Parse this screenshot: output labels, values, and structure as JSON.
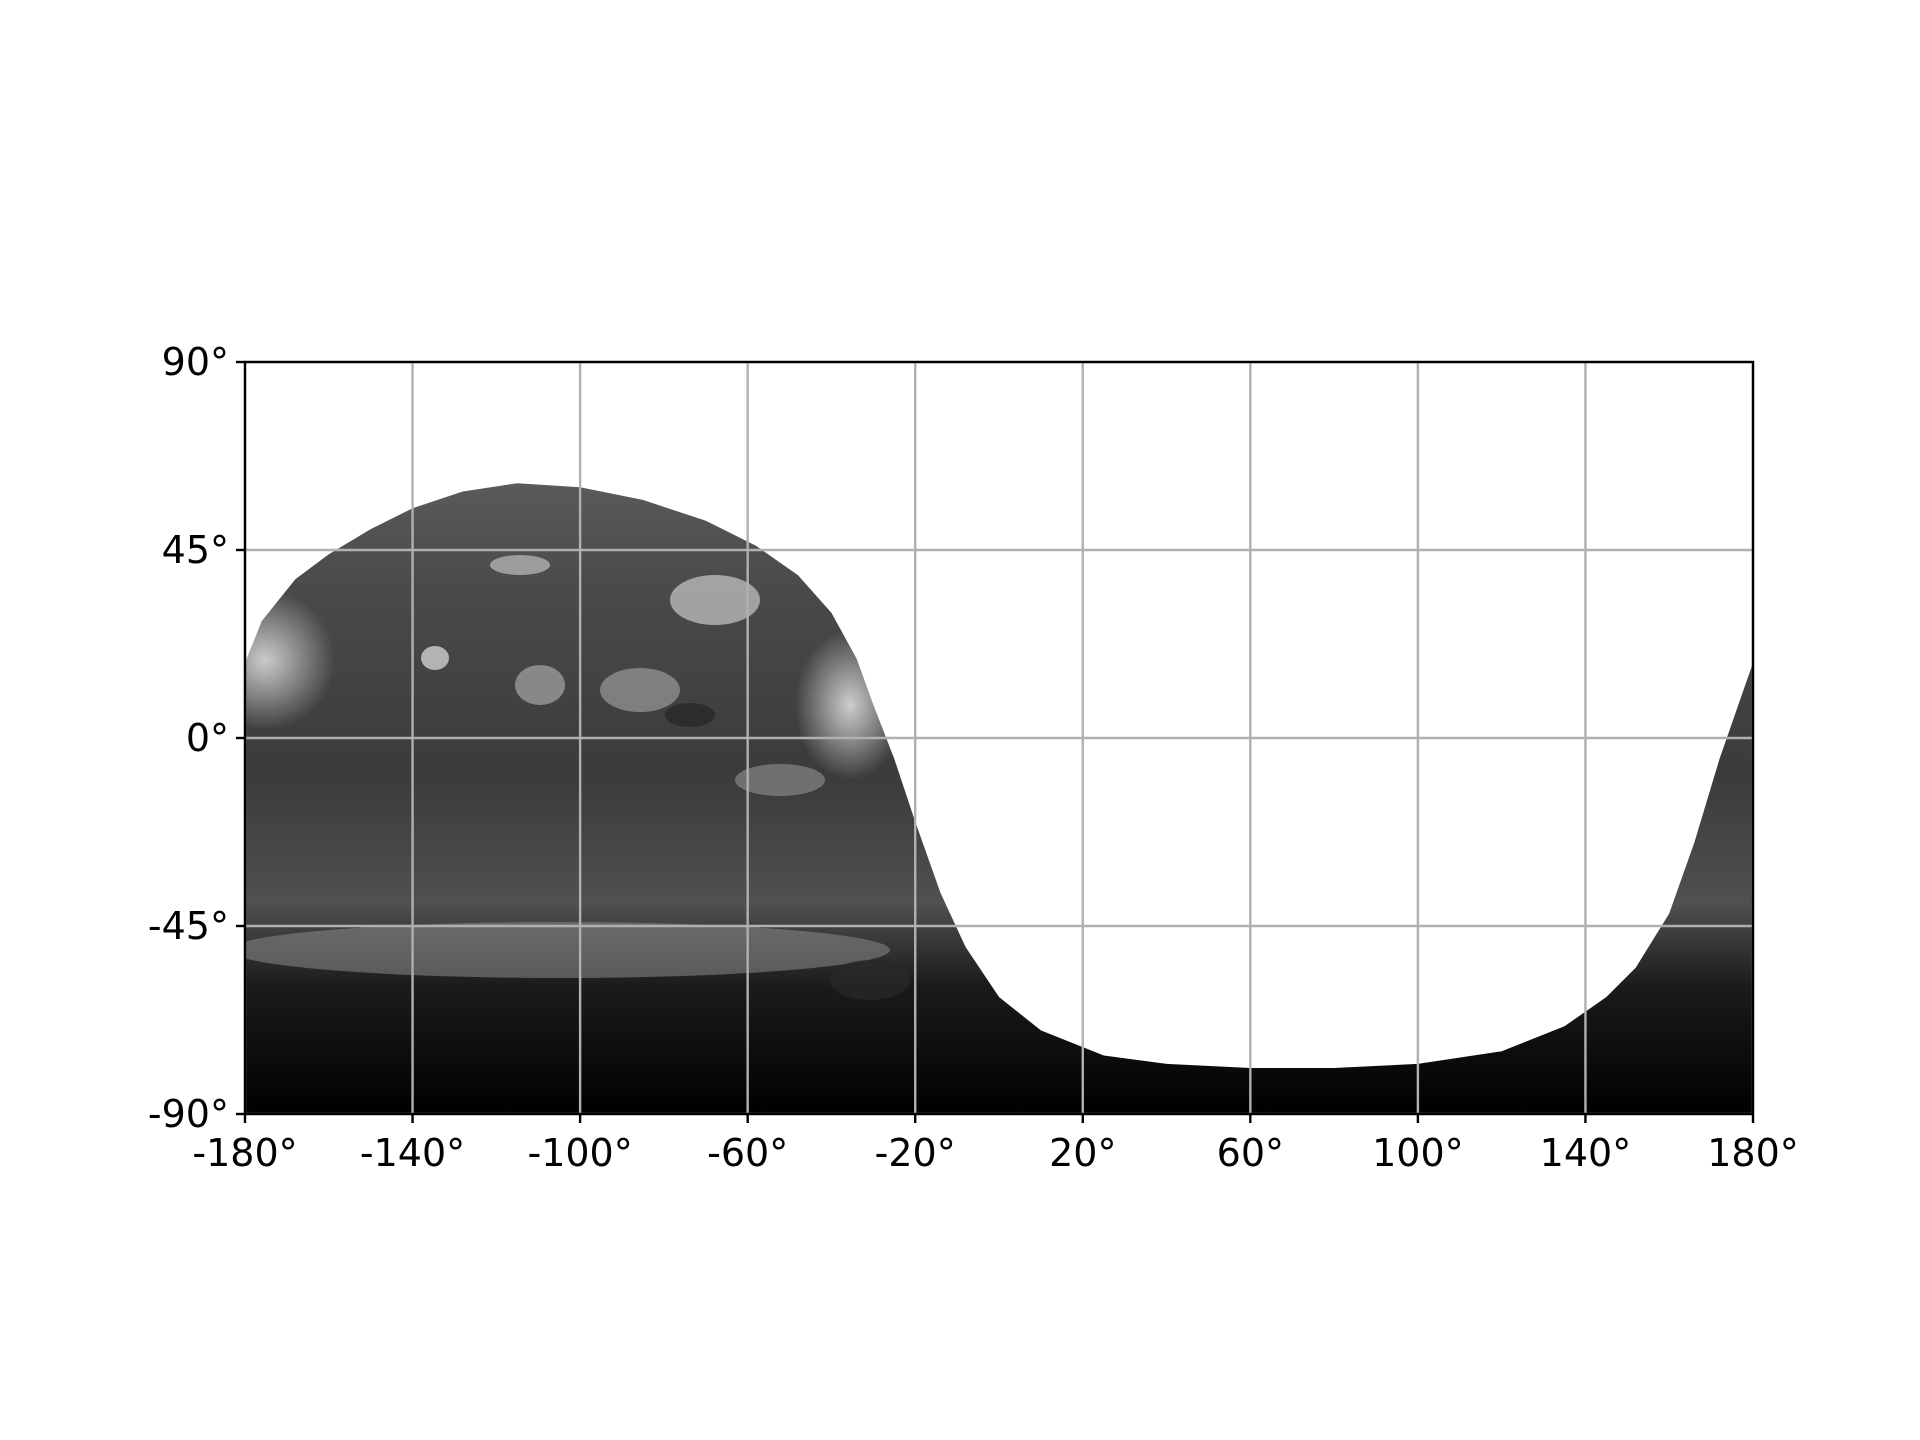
{
  "map": {
    "projection": "equirectangular",
    "x_ticks": [
      "-180°",
      "-140°",
      "-100°",
      "-60°",
      "-20°",
      "20°",
      "60°",
      "100°",
      "140°",
      "180°"
    ],
    "y_ticks": [
      "90°",
      "45°",
      "0°",
      "-45°",
      "-90°"
    ],
    "x_tick_values": [
      -180,
      -140,
      -100,
      -60,
      -20,
      20,
      60,
      100,
      140,
      180
    ],
    "y_tick_values": [
      90,
      45,
      0,
      -45,
      -90
    ],
    "lon_range": [
      -180,
      180
    ],
    "lat_range": [
      -90,
      90
    ],
    "gridlines": true,
    "grid_color": "#b0b0b0",
    "raster": "grayscale",
    "terminator": [
      [
        -180,
        18
      ],
      [
        -176,
        28
      ],
      [
        -168,
        38
      ],
      [
        -160,
        44
      ],
      [
        -150,
        50
      ],
      [
        -140,
        55
      ],
      [
        -128,
        59
      ],
      [
        -115,
        61
      ],
      [
        -100,
        60
      ],
      [
        -85,
        57
      ],
      [
        -70,
        52
      ],
      [
        -58,
        46
      ],
      [
        -48,
        39
      ],
      [
        -40,
        30
      ],
      [
        -34,
        19
      ],
      [
        -30,
        8
      ],
      [
        -25,
        -5
      ],
      [
        -20,
        -20
      ],
      [
        -14,
        -37
      ],
      [
        -8,
        -50
      ],
      [
        0,
        -62
      ],
      [
        10,
        -70
      ],
      [
        25,
        -76
      ],
      [
        40,
        -78
      ],
      [
        60,
        -79
      ],
      [
        80,
        -79
      ],
      [
        100,
        -78
      ],
      [
        120,
        -75
      ],
      [
        135,
        -69
      ],
      [
        145,
        -62
      ],
      [
        152,
        -55
      ],
      [
        160,
        -42
      ],
      [
        166,
        -25
      ],
      [
        172,
        -5
      ],
      [
        180,
        18
      ]
    ],
    "blank_region": "white"
  }
}
